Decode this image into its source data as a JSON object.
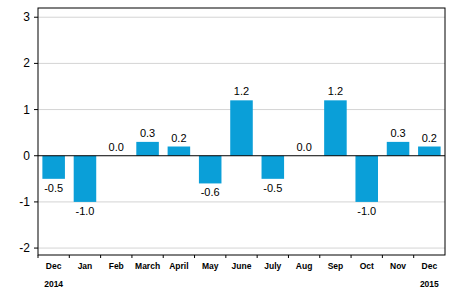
{
  "chart_data": {
    "type": "bar",
    "categories": [
      "Dec",
      "Jan",
      "Feb",
      "March",
      "April",
      "May",
      "June",
      "July",
      "Aug",
      "Sep",
      "Oct",
      "Nov",
      "Dec"
    ],
    "values": [
      -0.5,
      -1.0,
      0.0,
      0.3,
      0.2,
      -0.6,
      1.2,
      -0.5,
      0.0,
      1.2,
      -1.0,
      0.3,
      0.2
    ],
    "value_labels": [
      "-0.5",
      "-1.0",
      "0.0",
      "0.3",
      "0.2",
      "-0.6",
      "1.2",
      "-0.5",
      "0.0",
      "1.2",
      "-1.0",
      "0.3",
      "0.2"
    ],
    "color": "#0a9fd8",
    "ylim": [
      -2.15,
      3.2
    ],
    "yticks": [
      -2,
      -1,
      0,
      1,
      2,
      3
    ],
    "grid": true,
    "data_labels": true,
    "annotations": [
      "2014",
      "2015"
    ]
  }
}
